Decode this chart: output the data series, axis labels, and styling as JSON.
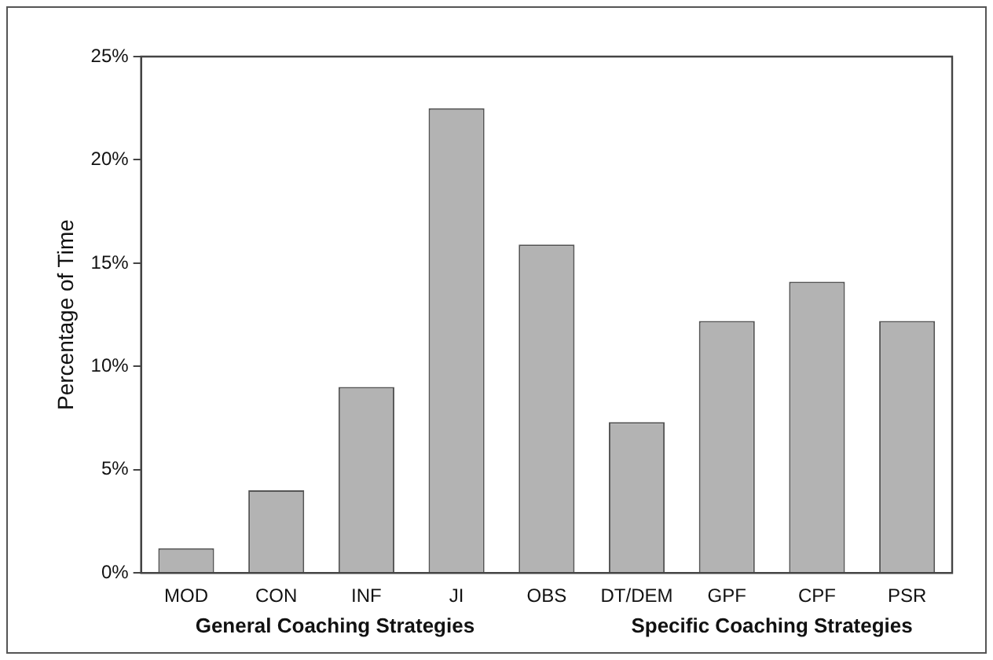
{
  "chart_data": {
    "type": "bar",
    "ylabel": "Percentage of Time",
    "categories": [
      "MOD",
      "CON",
      "INF",
      "JI",
      "OBS",
      "DT/DEM",
      "GPF",
      "CPF",
      "PSR"
    ],
    "values": [
      1.2,
      4.0,
      9.0,
      22.5,
      15.9,
      7.3,
      12.2,
      14.1,
      12.2
    ],
    "color": "#b3b3b3",
    "ylim": [
      0,
      25
    ],
    "yticks": [
      {
        "value": 0,
        "label": "0%"
      },
      {
        "value": 5,
        "label": "5%"
      },
      {
        "value": 10,
        "label": "10%"
      },
      {
        "value": 15,
        "label": "15%"
      },
      {
        "value": 20,
        "label": "20%"
      },
      {
        "value": 25,
        "label": "25%"
      }
    ],
    "grid": false,
    "legend": false,
    "annotations": [
      "General Coaching Strategies",
      "Specific Coaching Strategies"
    ]
  }
}
